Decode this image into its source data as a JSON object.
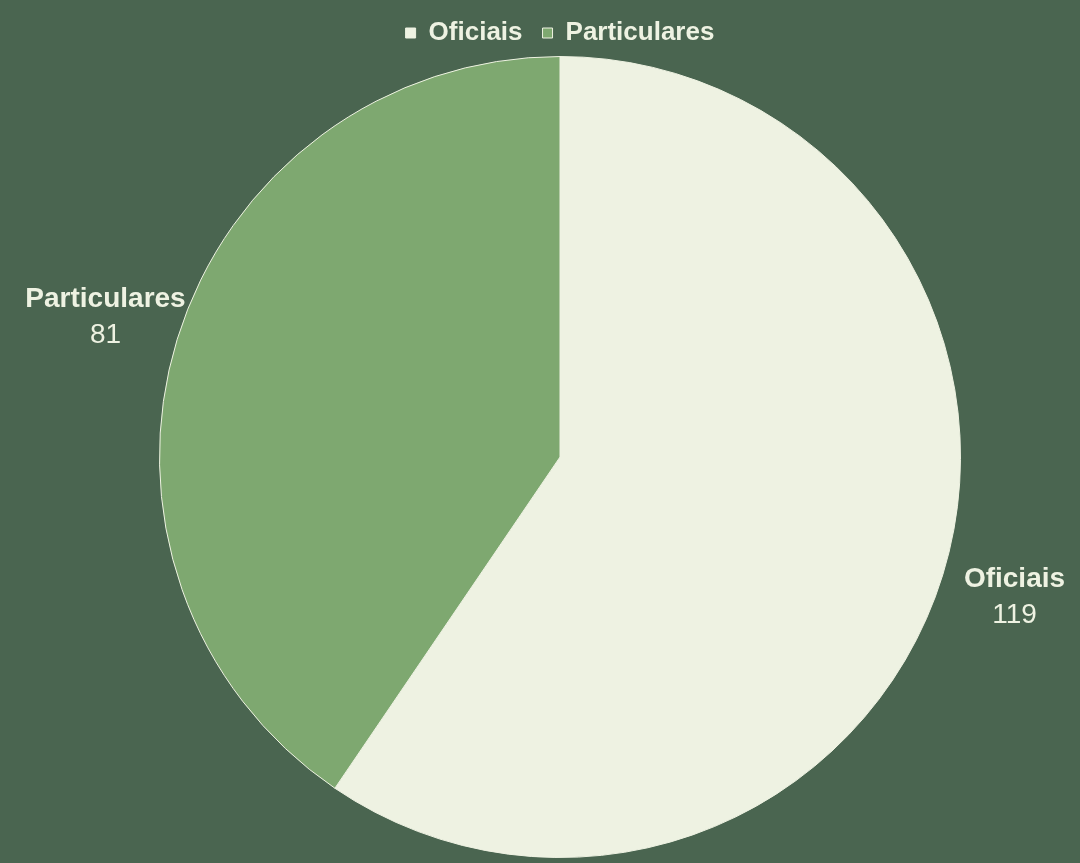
{
  "chart_data": {
    "type": "pie",
    "categories": [
      "Oficiais",
      "Particulares"
    ],
    "values": [
      119,
      81
    ],
    "colors": [
      "#eef2e2",
      "#7ea870"
    ],
    "legend": "top",
    "data_labels": true
  }
}
